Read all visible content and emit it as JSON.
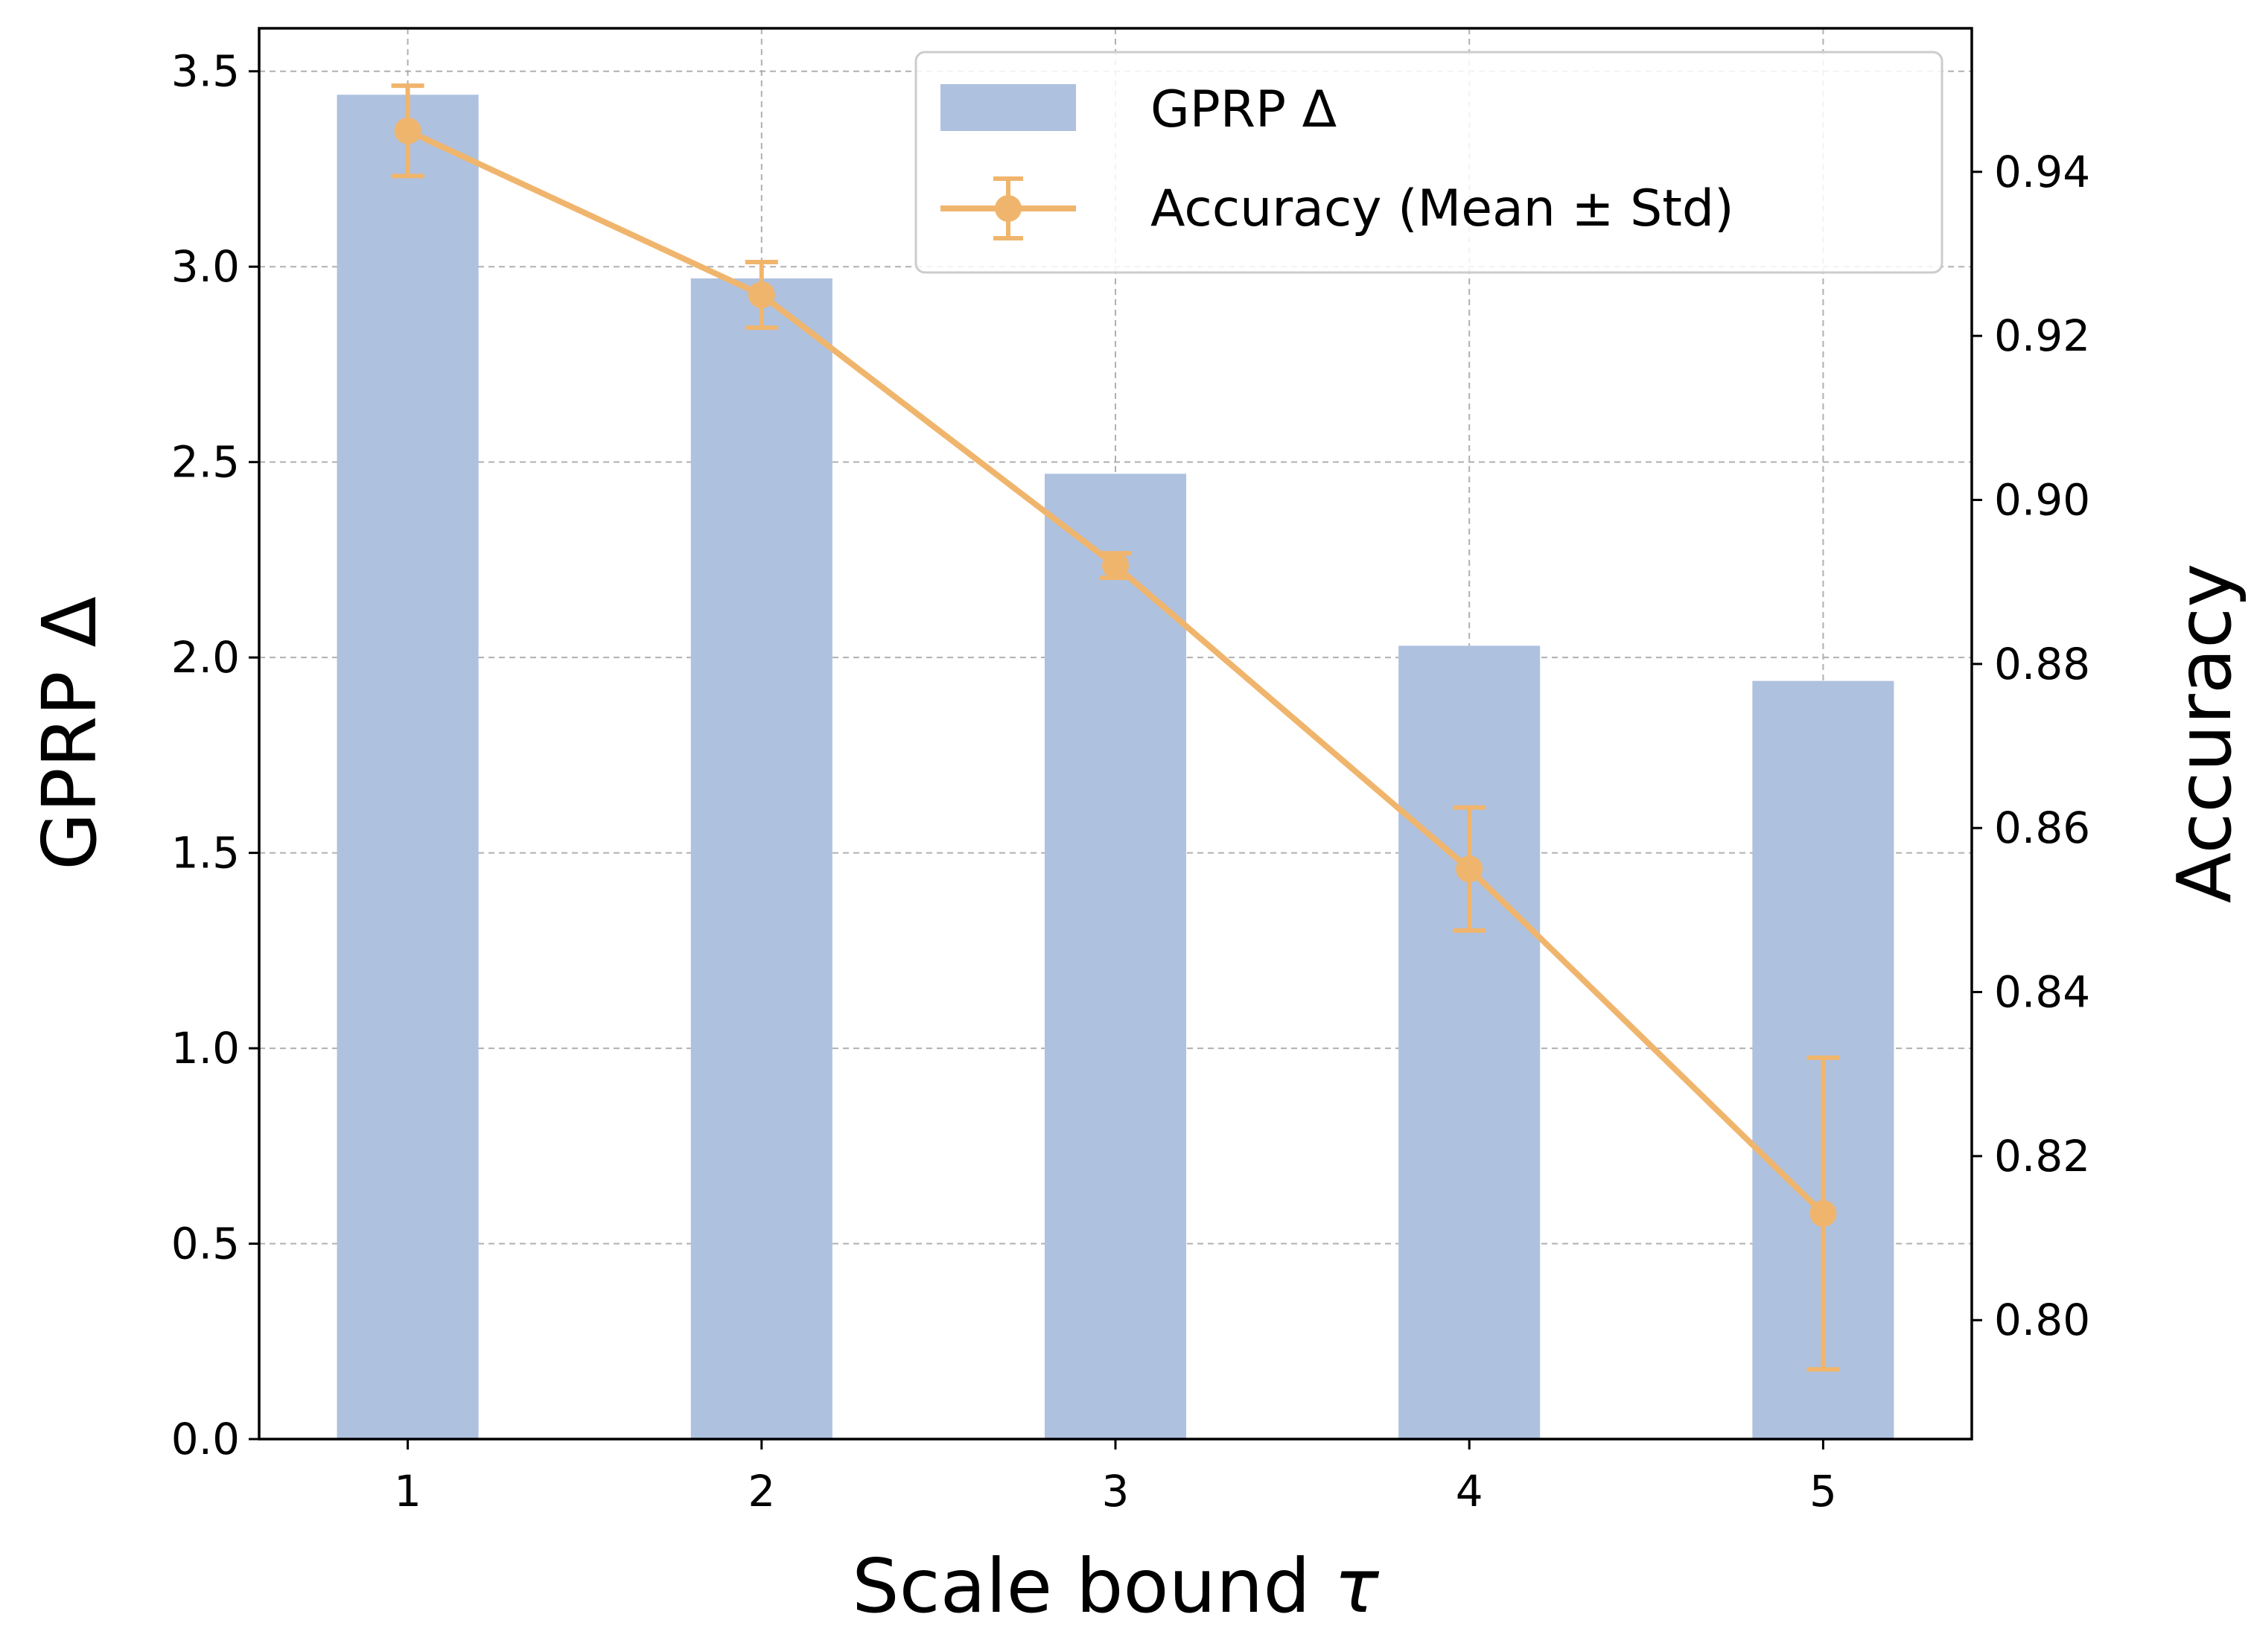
{
  "chart_data": {
    "type": "bar",
    "xlabel": "Scale bound",
    "xlabel_symbol": "τ",
    "ylabel_left": "GPRP Δ",
    "ylabel_right": "Accuracy",
    "categories": [
      "1",
      "2",
      "3",
      "4",
      "5"
    ],
    "x": [
      1,
      2,
      3,
      4,
      5
    ],
    "xlim": [
      0.58,
      5.42
    ],
    "ylim_left": [
      0,
      3.61
    ],
    "ylim_right": [
      0.7855,
      0.9575
    ],
    "left_ticks": [
      "0.0",
      "0.5",
      "1.0",
      "1.5",
      "2.0",
      "2.5",
      "3.0",
      "3.5"
    ],
    "right_ticks": [
      "0.80",
      "0.82",
      "0.84",
      "0.86",
      "0.88",
      "0.90",
      "0.92",
      "0.94"
    ],
    "grid": true,
    "legend_position": "top-right",
    "colors": {
      "bar": "#aec1df",
      "line": "#f0b56d"
    },
    "series": [
      {
        "name": "GPRP Δ",
        "type": "bar",
        "axis": "left",
        "values": [
          3.44,
          2.97,
          2.47,
          2.03,
          1.94
        ]
      },
      {
        "name": "Accuracy (Mean ± Std)",
        "type": "line",
        "axis": "right",
        "values": [
          0.945,
          0.925,
          0.892,
          0.855,
          0.813
        ],
        "std": [
          0.0055,
          0.004,
          0.0015,
          0.0075,
          0.019
        ]
      }
    ]
  }
}
